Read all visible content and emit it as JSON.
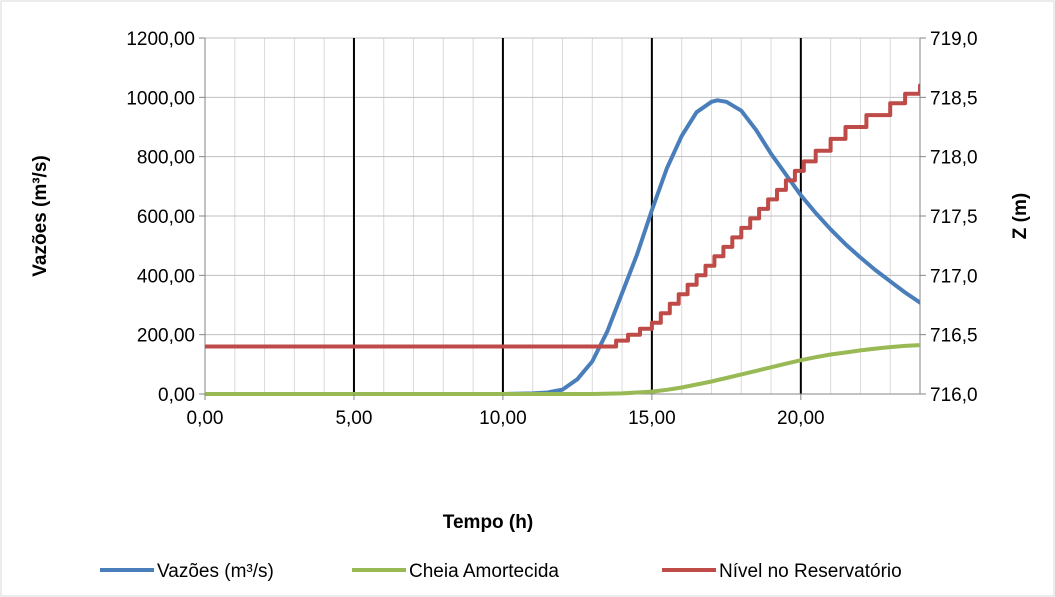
{
  "chart_data": {
    "type": "line",
    "title": "",
    "xlabel": "Tempo (h)",
    "ylabel": "Vazões (m³/s)",
    "y2label": "Z (m)",
    "xlim": [
      0,
      24
    ],
    "ylim": [
      0,
      1200
    ],
    "y2lim": [
      716.0,
      719.0
    ],
    "grid": true,
    "legend_position": "bottom",
    "x_tick_labels": [
      "0,00",
      "5,00",
      "10,00",
      "15,00",
      "20,00"
    ],
    "x_tick_values": [
      0,
      5,
      10,
      15,
      20
    ],
    "y_tick_labels": [
      "0,00",
      "200,00",
      "400,00",
      "600,00",
      "800,00",
      "1000,00",
      "1200,00"
    ],
    "y_tick_values": [
      0,
      200,
      400,
      600,
      800,
      1000,
      1200
    ],
    "y2_tick_labels": [
      "716,0",
      "716,5",
      "717,0",
      "717,5",
      "718,0",
      "718,5",
      "719,0"
    ],
    "y2_tick_values": [
      716.0,
      716.5,
      717.0,
      717.5,
      718.0,
      718.5,
      719.0
    ],
    "series": [
      {
        "name": "Vazões (m³/s)",
        "color": "#4a7ebb",
        "axis": "left",
        "x": [
          0,
          5,
          10,
          11,
          11.5,
          12,
          12.5,
          13,
          13.5,
          14,
          14.5,
          15,
          15.5,
          16,
          16.5,
          17,
          17.2,
          17.5,
          18,
          18.5,
          19,
          19.5,
          20,
          20.5,
          21,
          21.5,
          22,
          22.5,
          23,
          23.5,
          24
        ],
        "y": [
          0,
          0,
          0,
          2,
          5,
          15,
          50,
          110,
          210,
          340,
          470,
          620,
          760,
          870,
          950,
          985,
          990,
          985,
          955,
          890,
          810,
          740,
          670,
          610,
          555,
          505,
          460,
          418,
          380,
          342,
          308
        ]
      },
      {
        "name": "Cheia Amortecida",
        "color": "#98b954",
        "axis": "left",
        "x": [
          0,
          5,
          10,
          13,
          14,
          15,
          15.5,
          16,
          16.5,
          17,
          17.5,
          18,
          18.5,
          19,
          19.5,
          20,
          20.5,
          21,
          21.5,
          22,
          22.5,
          23,
          23.5,
          24
        ],
        "y": [
          0,
          0,
          0,
          0,
          2,
          8,
          14,
          22,
          32,
          42,
          54,
          66,
          78,
          90,
          102,
          114,
          124,
          133,
          140,
          147,
          153,
          158,
          162,
          165
        ]
      },
      {
        "name": "Nível no Reservatório",
        "color": "#be4b48",
        "axis": "right",
        "x": [
          0,
          13.5,
          13.8,
          14.2,
          14.6,
          15,
          15.3,
          15.6,
          15.9,
          16.2,
          16.5,
          16.8,
          17.1,
          17.4,
          17.7,
          18,
          18.3,
          18.6,
          18.9,
          19.2,
          19.5,
          19.8,
          20.1,
          20.5,
          21,
          21.5,
          22.2,
          23,
          23.5,
          24
        ],
        "y": [
          716.4,
          716.4,
          716.45,
          716.5,
          716.55,
          716.6,
          716.68,
          716.76,
          716.84,
          716.92,
          717.0,
          717.08,
          717.16,
          717.24,
          717.32,
          717.4,
          717.48,
          717.56,
          717.64,
          717.72,
          717.8,
          717.88,
          717.96,
          718.05,
          718.15,
          718.25,
          718.35,
          718.45,
          718.53,
          718.6
        ]
      }
    ]
  }
}
